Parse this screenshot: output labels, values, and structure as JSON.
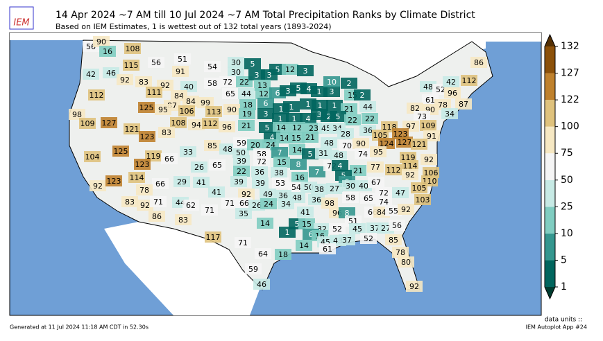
{
  "header": {
    "logo": "IEM",
    "title": "14 Apr 2024 ~7 AM till 10 Jul 2024 ~7 AM Total Precipitation Ranks by Climate District",
    "subtitle": "Based on IEM Estimates, 1 is wettest out of 132 total years (1893-2024)"
  },
  "colorbar": {
    "ticks": [
      1,
      5,
      10,
      25,
      50,
      75,
      100,
      122,
      127,
      132
    ],
    "colors": [
      "#01665e",
      "#35978f",
      "#80cdc1",
      "#c7eae5",
      "#f5f5f5",
      "#f6e8c3",
      "#dfc27d",
      "#bf812d",
      "#8c510a"
    ],
    "under_color": "#003c30",
    "over_color": "#543005",
    "label": "data units ::"
  },
  "districts": [
    56,
    90,
    16,
    108,
    51,
    54,
    30,
    5,
    5,
    12,
    3,
    86,
    115,
    42,
    46,
    92,
    56,
    91,
    58,
    30,
    72,
    22,
    3,
    3,
    13,
    92,
    40,
    112,
    83,
    111,
    65,
    44,
    12,
    6,
    3,
    5,
    4,
    1,
    3,
    10,
    2,
    15,
    2,
    112,
    48,
    52,
    42,
    96,
    84,
    84,
    99,
    87,
    125,
    95,
    106,
    113,
    18,
    6,
    1,
    1,
    1,
    1,
    1,
    21,
    44,
    61,
    78,
    87,
    82,
    90,
    73,
    34,
    98,
    109,
    127,
    121,
    90,
    19,
    3,
    1,
    1,
    4,
    3,
    2,
    5,
    22,
    22,
    118,
    97,
    109,
    108,
    94,
    112,
    96,
    21,
    5,
    14,
    12,
    23,
    45,
    34,
    36,
    105,
    123,
    83,
    123,
    91,
    4,
    14,
    15,
    21,
    28,
    48,
    125,
    104,
    119,
    66,
    33,
    85,
    48,
    50,
    59,
    20,
    24,
    58,
    39,
    7,
    14,
    5,
    31,
    48,
    70,
    90,
    74,
    124,
    127,
    121,
    95,
    119,
    92,
    123,
    114,
    72,
    15,
    8,
    7,
    72,
    4,
    21,
    77,
    112,
    114,
    106,
    26,
    65,
    22,
    36,
    38,
    16,
    5,
    29,
    41,
    39,
    39,
    53,
    66,
    92,
    123,
    78,
    92,
    110,
    6,
    27,
    30,
    40,
    67,
    54,
    50,
    38,
    105,
    92,
    49,
    36,
    48,
    36,
    41,
    72,
    47,
    103,
    58,
    65,
    74,
    98,
    66,
    26,
    24,
    34,
    83,
    92,
    71,
    44,
    62,
    71,
    71,
    96,
    8,
    51,
    66,
    84,
    55,
    92,
    86,
    83,
    35,
    41,
    14,
    5,
    15,
    32,
    52,
    45,
    37,
    27,
    56,
    117,
    71,
    1,
    6,
    16,
    45,
    43,
    37,
    52,
    85,
    14,
    61,
    64,
    18,
    78,
    59,
    80,
    46,
    92
  ],
  "footer": {
    "generated": "Generated at 11 Jul 2024 11:18 AM CDT in 52.30s",
    "app": "IEM Autoplot App #24"
  }
}
